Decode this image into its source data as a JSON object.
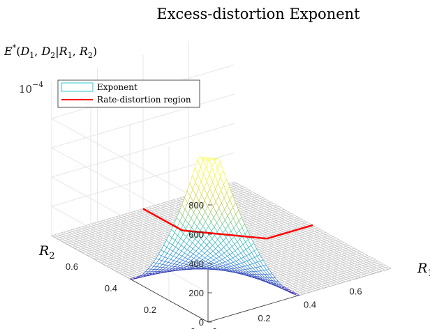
{
  "chart_data": {
    "type": "surface",
    "title": "Excess-distortion Exponent",
    "zlabel": "E*(D1, D2|R1, R2)",
    "xlabel": "R1",
    "ylabel": "R2",
    "z_exponent_label": "10^-4",
    "z_exponent_text": "10",
    "z_exponent_power": "−4",
    "xlim": [
      0,
      0.8
    ],
    "ylim": [
      0,
      0.8
    ],
    "zlim": [
      0,
      1000
    ],
    "x_ticks": [
      0,
      0.2,
      0.4,
      0.6
    ],
    "y_ticks": [
      0,
      0.2,
      0.4,
      0.6
    ],
    "z_ticks": [
      0,
      200,
      400,
      600,
      800
    ],
    "x_tick_labels": [
      "0",
      "0.2",
      "0.4",
      "0.6"
    ],
    "y_tick_labels": [
      "0",
      "0.2",
      "0.4",
      "0.6"
    ],
    "z_tick_labels": [
      "0",
      "200",
      "400",
      "600",
      "800"
    ],
    "grid": true,
    "legend": {
      "placement": "top-left",
      "entries": [
        {
          "label": "Exponent",
          "color": "#33c7d6"
        },
        {
          "label": "Rate-distortion region",
          "color": "#ff0000"
        }
      ]
    },
    "series": [
      {
        "name": "Exponent",
        "kind": "surface",
        "description_values": {
          "zero_region": "R1 >= 0.4 or R2 >= 0.4 or R1 + R2 >= 1.0",
          "samples": [
            {
              "R1": 0.0,
              "R2": 0.0,
              "E": 1350
            },
            {
              "R1": 0.2,
              "R2": 0.2,
              "E": 280
            },
            {
              "R1": 0.3,
              "R2": 0.1,
              "E": 120
            },
            {
              "R1": 0.4,
              "R2": 0.4,
              "E": 0
            },
            {
              "R1": 0.6,
              "R2": 0.6,
              "E": 0
            }
          ]
        }
      },
      {
        "name": "Rate-distortion region",
        "kind": "line",
        "points": [
          {
            "R1": 0.4,
            "R2": 0.8
          },
          {
            "R1": 0.4,
            "R2": 0.6
          },
          {
            "R1": 0.6,
            "R2": 0.4
          },
          {
            "R1": 0.8,
            "R2": 0.4
          }
        ]
      }
    ],
    "colors": {
      "low": "#3a3ddb",
      "mid": "#2ec7a9",
      "high": "#f8f83c",
      "zero_grid": "#bfbfbf",
      "boundary": "#ff0000"
    }
  }
}
